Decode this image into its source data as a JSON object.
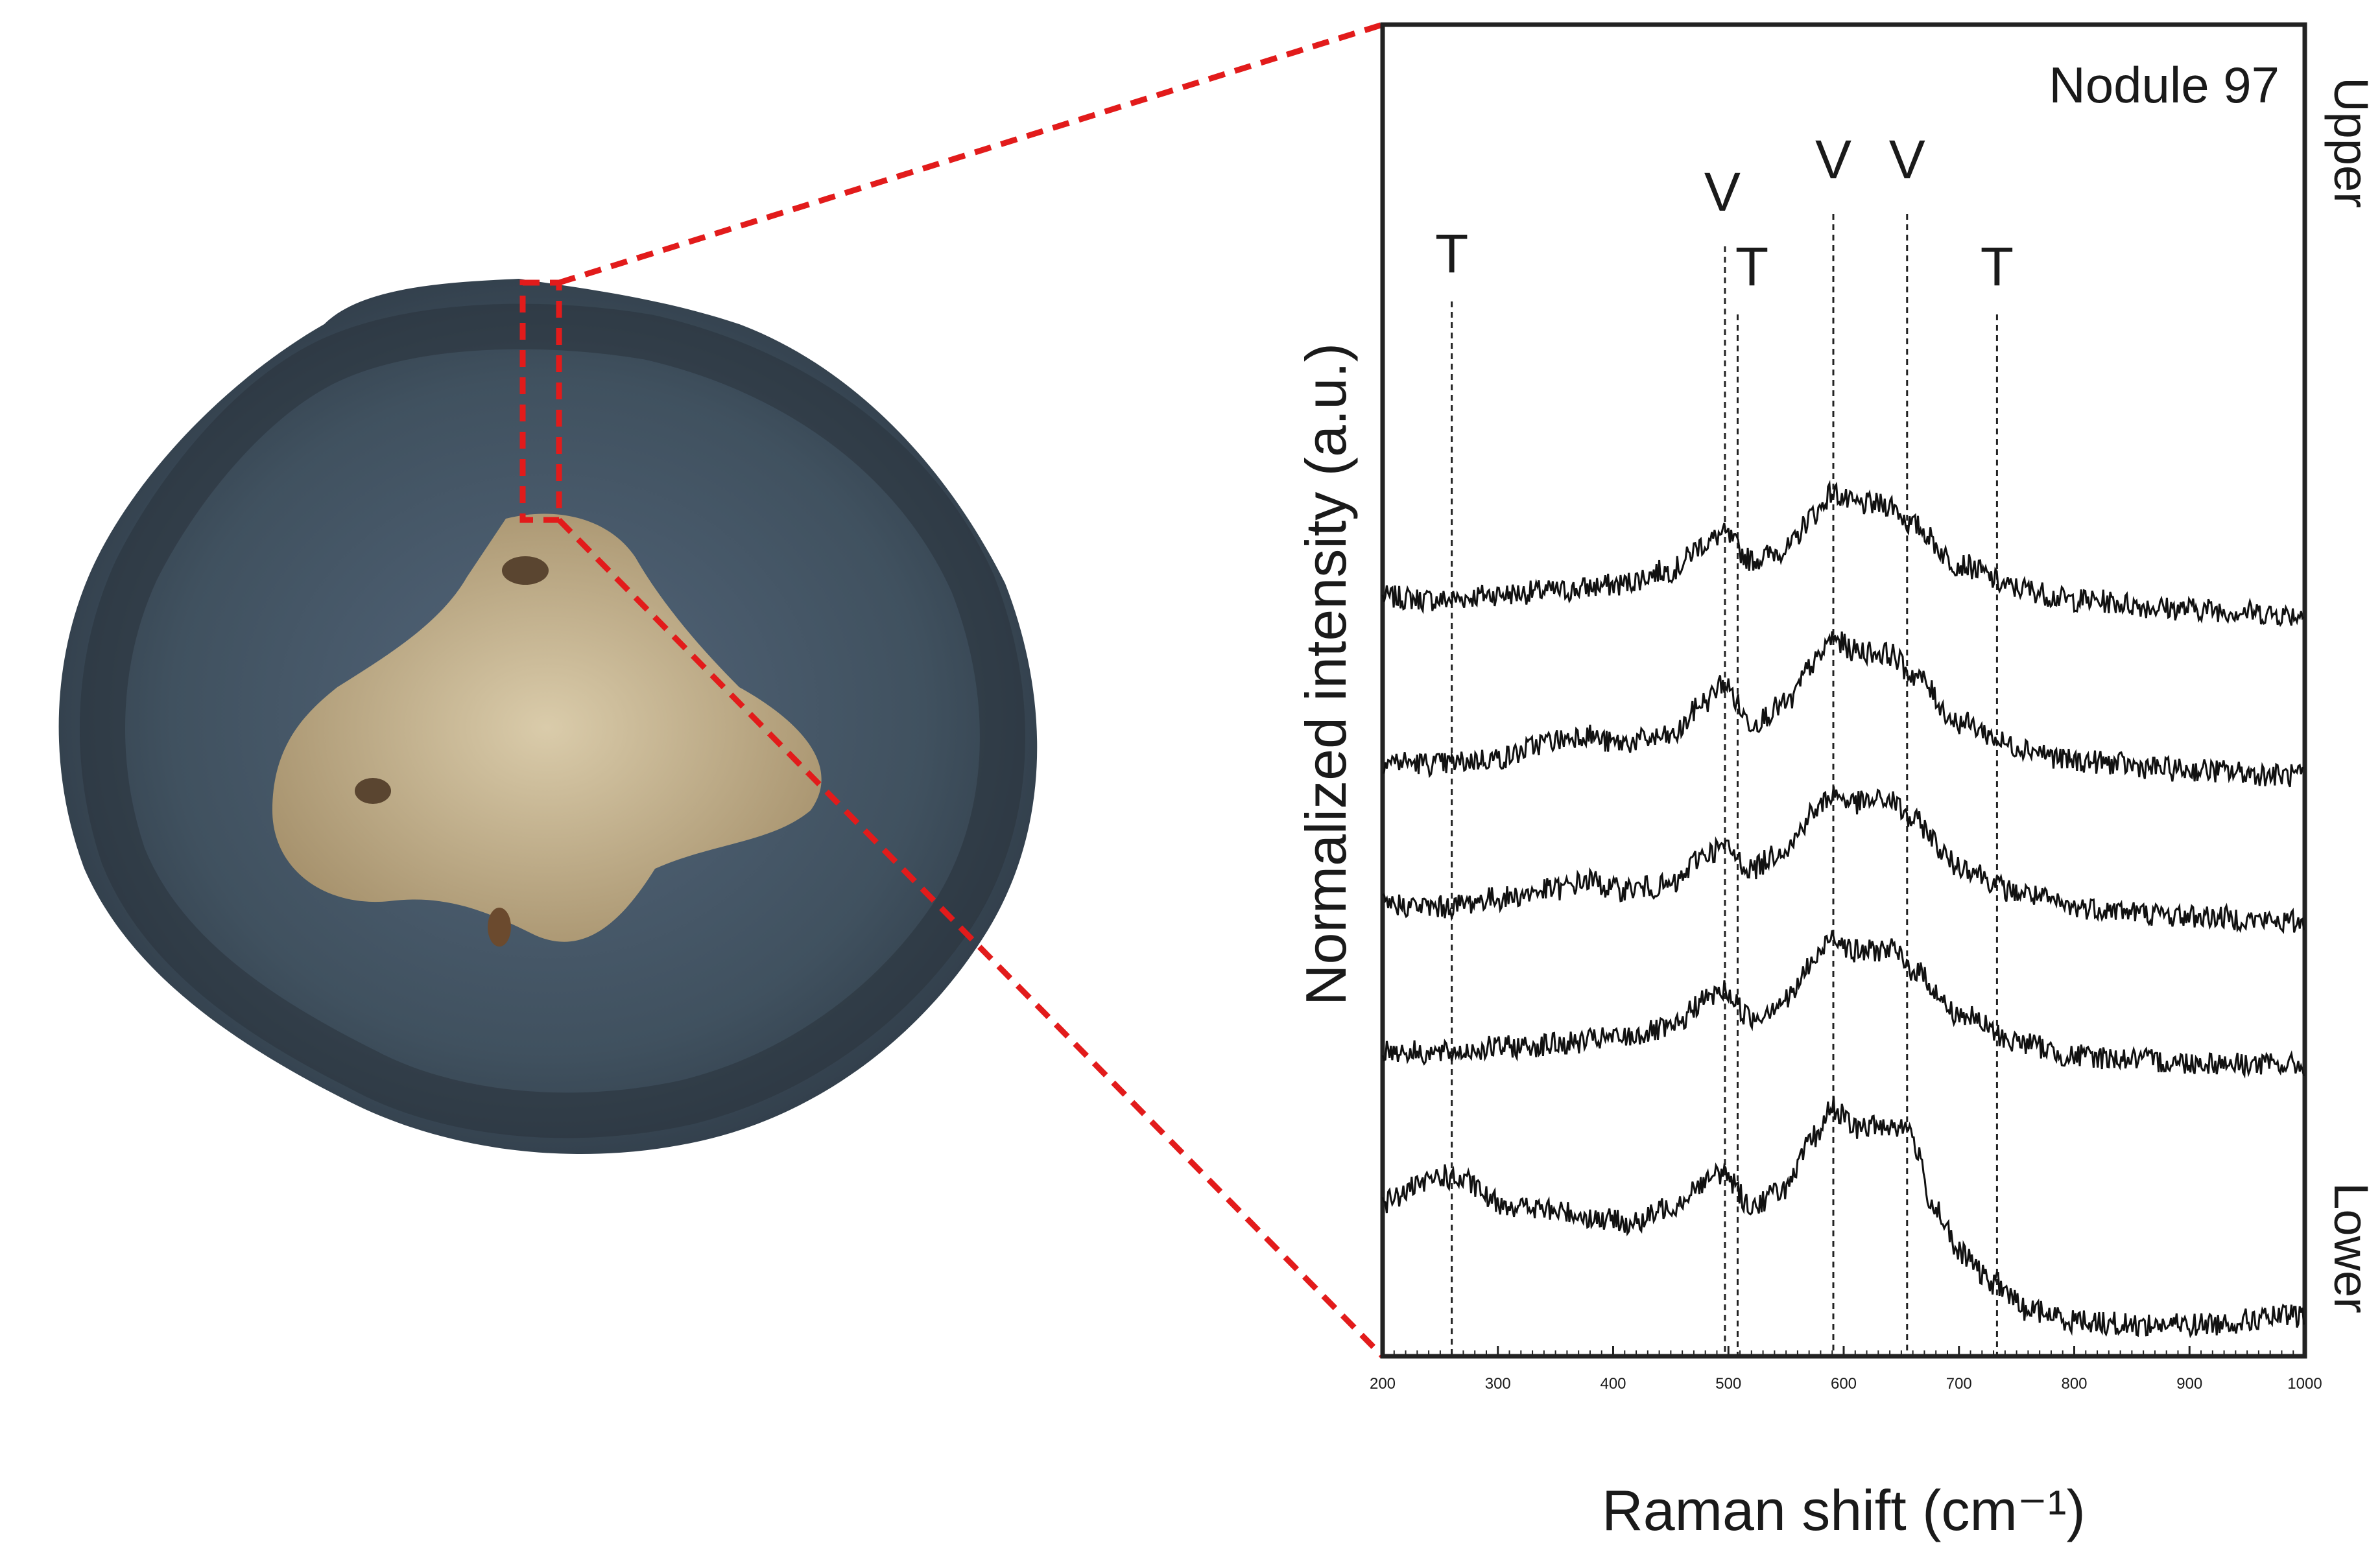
{
  "figure": {
    "nodule_label": "Nodule 97",
    "upper_label": "Upper",
    "lower_label": "Lower"
  },
  "colors": {
    "callout": "#e21b1b",
    "spectrum": "#111111",
    "axis": "#222222",
    "nodule_dark": "#3c4c5e",
    "nodule_core": "#cdb892"
  },
  "chart_data": {
    "type": "line",
    "title": "",
    "xlabel": "Raman shift (cm⁻¹)",
    "ylabel": "Normalized intensity (a.u.)",
    "xlim": [
      200,
      1000
    ],
    "x_ticks": [
      "200",
      "300",
      "400",
      "500",
      "600",
      "700",
      "800",
      "900",
      "1000"
    ],
    "y_ticks": [],
    "grid": false,
    "stack_order": "top-to-bottom: Upper to Lower",
    "peak_markers": [
      {
        "label": "T",
        "x": 260
      },
      {
        "label": "V",
        "x": 497
      },
      {
        "label": "T",
        "x": 508
      },
      {
        "label": "V",
        "x": 591
      },
      {
        "label": "V",
        "x": 655
      },
      {
        "label": "T",
        "x": 733
      }
    ],
    "series": [
      {
        "x": [
          200,
          250,
          300,
          350,
          400,
          450,
          480,
          495,
          520,
          550,
          575,
          590,
          610,
          640,
          660,
          700,
          750,
          800,
          900,
          1000
        ],
        "values": [
          4.3,
          4.28,
          4.32,
          4.34,
          4.38,
          4.48,
          4.66,
          4.72,
          4.55,
          4.62,
          4.86,
          5.0,
          4.92,
          4.92,
          4.78,
          4.52,
          4.36,
          4.28,
          4.22,
          4.18
        ]
      },
      {
        "x": [
          200,
          250,
          300,
          350,
          375,
          400,
          450,
          480,
          495,
          520,
          550,
          575,
          590,
          610,
          640,
          660,
          700,
          750,
          800,
          900,
          1000
        ],
        "values": [
          3.2,
          3.18,
          3.22,
          3.34,
          3.38,
          3.32,
          3.36,
          3.6,
          3.72,
          3.46,
          3.58,
          3.86,
          4.02,
          3.94,
          3.92,
          3.78,
          3.46,
          3.3,
          3.2,
          3.14,
          3.1
        ]
      },
      {
        "x": [
          200,
          250,
          300,
          350,
          380,
          400,
          450,
          480,
          495,
          520,
          550,
          575,
          590,
          610,
          640,
          660,
          700,
          750,
          800,
          900,
          1000
        ],
        "values": [
          2.24,
          2.22,
          2.28,
          2.34,
          2.4,
          2.34,
          2.36,
          2.58,
          2.62,
          2.48,
          2.62,
          2.86,
          2.98,
          2.92,
          2.94,
          2.8,
          2.5,
          2.32,
          2.22,
          2.16,
          2.12
        ]
      },
      {
        "x": [
          200,
          250,
          300,
          350,
          400,
          450,
          480,
          495,
          520,
          550,
          575,
          590,
          610,
          640,
          660,
          700,
          750,
          800,
          900,
          1000
        ],
        "values": [
          1.26,
          1.24,
          1.28,
          1.3,
          1.34,
          1.4,
          1.6,
          1.66,
          1.48,
          1.6,
          1.86,
          2.04,
          1.92,
          1.94,
          1.8,
          1.5,
          1.32,
          1.22,
          1.18,
          1.16
        ]
      },
      {
        "x": [
          200,
          230,
          250,
          270,
          300,
          330,
          350,
          400,
          420,
          450,
          480,
          495,
          520,
          550,
          575,
          590,
          610,
          640,
          655,
          680,
          700,
          730,
          760,
          800,
          850,
          900,
          1000
        ],
        "values": [
          0.24,
          0.34,
          0.42,
          0.38,
          0.24,
          0.2,
          0.18,
          0.12,
          0.1,
          0.22,
          0.38,
          0.44,
          0.22,
          0.34,
          0.68,
          0.88,
          0.74,
          0.76,
          0.74,
          0.2,
          -0.1,
          -0.3,
          -0.48,
          -0.55,
          -0.58,
          -0.58,
          -0.52
        ]
      }
    ]
  }
}
